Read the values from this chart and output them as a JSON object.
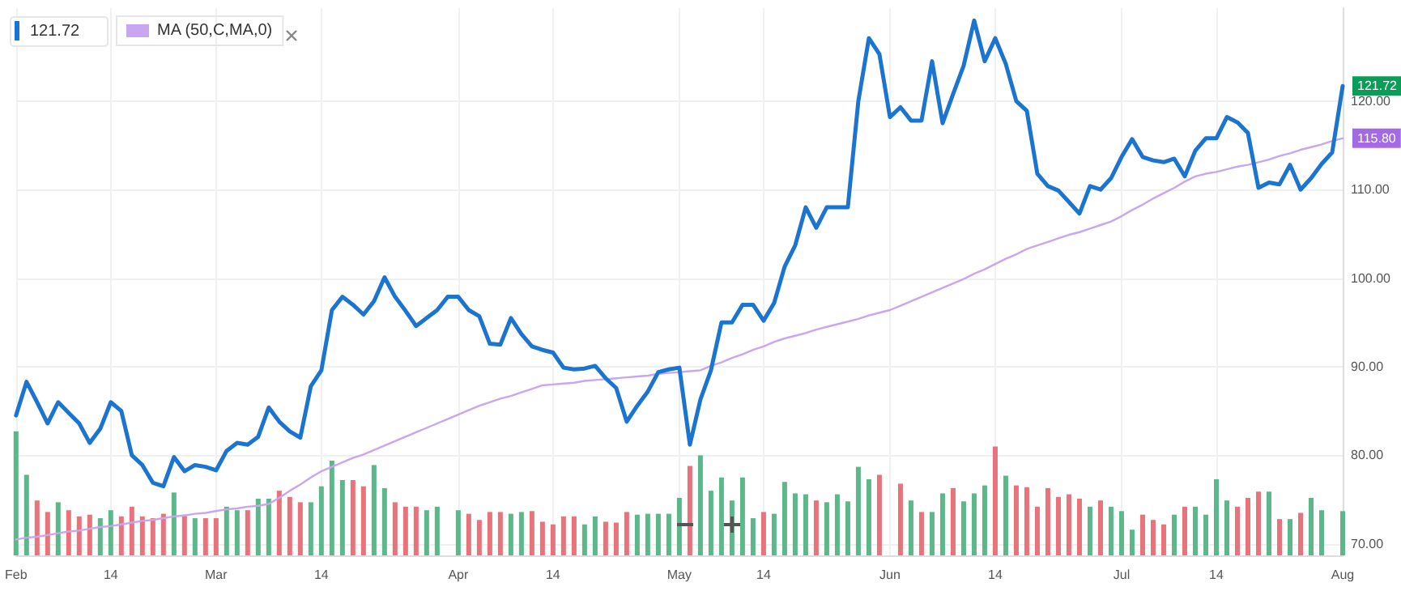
{
  "chart_data": {
    "type": "line",
    "annotations": [
      "121.72",
      {
        "text": "121.72",
        "x": "Aug",
        "y": 121.7
      },
      {
        "text": "115.80",
        "x": "Aug",
        "y": 115.8
      }
    ],
    "categories": [
      "Feb",
      null,
      null,
      null,
      null,
      null,
      null,
      null,
      null,
      "14",
      null,
      null,
      null,
      null,
      null,
      null,
      null,
      null,
      null,
      "Mar",
      null,
      null,
      null,
      null,
      null,
      null,
      null,
      null,
      null,
      "14",
      null,
      null,
      null,
      null,
      null,
      null,
      null,
      null,
      null,
      null,
      null,
      null,
      "Apr",
      null,
      null,
      null,
      null,
      null,
      null,
      null,
      null,
      "14",
      null,
      null,
      null,
      null,
      null,
      null,
      null,
      null,
      null,
      null,
      null,
      "May",
      null,
      null,
      null,
      null,
      null,
      null,
      null,
      "14",
      null,
      null,
      null,
      null,
      null,
      null,
      null,
      null,
      null,
      null,
      null,
      "Jun",
      null,
      null,
      null,
      null,
      null,
      null,
      null,
      null,
      null,
      "14",
      null,
      null,
      null,
      null,
      null,
      null,
      null,
      null,
      null,
      null,
      null,
      "Jul",
      null,
      null,
      null,
      null,
      null,
      null,
      null,
      null,
      "14",
      null,
      null,
      null,
      null,
      null,
      null,
      null,
      null,
      null,
      null,
      null,
      "Aug"
    ],
    "ylim": [
      68.7,
      130.5
    ],
    "yticks": [
      {
        "value": 70,
        "label": "70.00"
      },
      {
        "value": 80,
        "label": "80.00"
      },
      {
        "value": 90,
        "label": "90.00"
      },
      {
        "value": 100,
        "label": "100.00"
      },
      {
        "value": 110,
        "label": "110.00"
      },
      {
        "value": 120,
        "label": "120.00"
      }
    ],
    "grid": true,
    "legend": "top left",
    "series": [
      {
        "type": "bar",
        "values": [
          82.7,
          77.8,
          74.9,
          73.6,
          74.7,
          73.8,
          73.1,
          73.3,
          72.9,
          73.8,
          73.1,
          74.2,
          73.1,
          72.9,
          73.4,
          75.8,
          73.3,
          72.9,
          72.9,
          72.9,
          74.2,
          73.8,
          73.8,
          75.1,
          75.1,
          76.0,
          75.3,
          74.7,
          74.7,
          76.5,
          79.4,
          77.2,
          77.2,
          76.5,
          78.9,
          76.3,
          74.7,
          74.2,
          74.2,
          73.8,
          74.2,
          null,
          73.8,
          73.4,
          72.7,
          73.6,
          73.6,
          73.4,
          73.6,
          73.7,
          72.5,
          72.2,
          73.1,
          73.1,
          72.2,
          73.1,
          72.5,
          72.4,
          73.6,
          73.3,
          73.4,
          73.4,
          73.4,
          75.2,
          78.8,
          80.0,
          76.0,
          77.5,
          74.9,
          77.5,
          72.9,
          73.6,
          73.4,
          77.0,
          75.7,
          75.6,
          74.9,
          74.7,
          75.6,
          74.8,
          78.7,
          77.3,
          77.8,
          null,
          76.8,
          74.9,
          73.6,
          73.6,
          75.7,
          76.3,
          74.8,
          75.7,
          76.6,
          81.0,
          77.7,
          76.6,
          76.4,
          74.2,
          76.3,
          75.3,
          75.6,
          75.1,
          74.2,
          74.9,
          74.2,
          73.7,
          71.6,
          73.3,
          72.7,
          72.2,
          73.3,
          74.2,
          74.2,
          73.3,
          77.3,
          74.9,
          74.2,
          75.2,
          75.9,
          75.9,
          72.8,
          72.8,
          73.5,
          75.2,
          73.8,
          null,
          73.7
        ],
        "colors": [
          "#5cb88a",
          "#5cb88a",
          "#e8737a",
          "#e8737a",
          "#5cb88a",
          "#e8737a",
          "#e8737a",
          "#e8737a",
          "#5cb88a",
          "#5cb88a",
          "#e8737a",
          "#e8737a",
          "#e8737a",
          "#e8737a",
          "#e8737a",
          "#5cb88a",
          "#e8737a",
          "#5cb88a",
          "#e8737a",
          "#e8737a",
          "#5cb88a",
          "#5cb88a",
          "#e8737a",
          "#5cb88a",
          "#5cb88a",
          "#e8737a",
          "#e8737a",
          "#e8737a",
          "#5cb88a",
          "#5cb88a",
          "#5cb88a",
          "#5cb88a",
          "#e8737a",
          "#e8737a",
          "#5cb88a",
          "#5cb88a",
          "#e8737a",
          "#e8737a",
          "#e8737a",
          "#5cb88a",
          "#5cb88a",
          null,
          "#5cb88a",
          "#e8737a",
          "#e8737a",
          "#e8737a",
          "#e8737a",
          "#5cb88a",
          "#5cb88a",
          "#e8737a",
          "#e8737a",
          "#e8737a",
          "#e8737a",
          "#e8737a",
          "#5cb88a",
          "#5cb88a",
          "#e8737a",
          "#e8737a",
          "#e8737a",
          "#5cb88a",
          "#5cb88a",
          "#5cb88a",
          "#5cb88a",
          "#5cb88a",
          "#e8737a",
          "#5cb88a",
          "#5cb88a",
          "#5cb88a",
          "#5cb88a",
          "#5cb88a",
          "#5cb88a",
          "#e8737a",
          "#5cb88a",
          "#5cb88a",
          "#5cb88a",
          "#5cb88a",
          "#e8737a",
          "#5cb88a",
          "#5cb88a",
          "#5cb88a",
          "#5cb88a",
          "#5cb88a",
          "#e8737a",
          null,
          "#e8737a",
          "#5cb88a",
          "#e8737a",
          "#5cb88a",
          "#5cb88a",
          "#e8737a",
          "#5cb88a",
          "#5cb88a",
          "#5cb88a",
          "#e8737a",
          "#5cb88a",
          "#e8737a",
          "#e8737a",
          "#e8737a",
          "#e8737a",
          "#e8737a",
          "#e8737a",
          "#e8737a",
          "#5cb88a",
          "#e8737a",
          "#5cb88a",
          "#5cb88a",
          "#5cb88a",
          "#e8737a",
          "#e8737a",
          "#e8737a",
          "#5cb88a",
          "#e8737a",
          "#5cb88a",
          "#5cb88a",
          "#5cb88a",
          "#5cb88a",
          "#e8737a",
          "#e8737a",
          "#e8737a",
          "#5cb88a",
          "#e8737a",
          "#5cb88a",
          "#e8737a",
          "#5cb88a",
          "#5cb88a",
          null,
          "#5cb88a"
        ]
      },
      {
        "name": "MA (50,C,MA,0)",
        "type": "line",
        "color": "#c9a6f0",
        "values": [
          70.5,
          70.7,
          70.8,
          71.0,
          71.2,
          71.4,
          71.5,
          71.7,
          71.9,
          72.0,
          72.2,
          72.4,
          72.6,
          72.7,
          72.9,
          73.1,
          73.2,
          73.4,
          73.5,
          73.7,
          73.9,
          74.0,
          74.2,
          74.3,
          74.5,
          75.2,
          76.0,
          76.7,
          77.5,
          78.2,
          78.7,
          79.2,
          79.7,
          80.1,
          80.6,
          81.1,
          81.6,
          82.1,
          82.6,
          83.1,
          83.6,
          84.1,
          84.6,
          85.1,
          85.6,
          86.0,
          86.4,
          86.7,
          87.1,
          87.5,
          87.9,
          88.0,
          88.1,
          88.2,
          88.4,
          88.5,
          88.6,
          88.7,
          88.8,
          88.9,
          89.0,
          89.2,
          89.3,
          89.4,
          89.5,
          89.6,
          90.1,
          90.5,
          91.0,
          91.4,
          91.9,
          92.3,
          92.8,
          93.2,
          93.5,
          93.8,
          94.2,
          94.5,
          94.8,
          95.1,
          95.4,
          95.8,
          96.1,
          96.4,
          96.9,
          97.4,
          97.9,
          98.4,
          98.9,
          99.4,
          99.9,
          100.5,
          101.0,
          101.6,
          102.2,
          102.7,
          103.3,
          103.7,
          104.1,
          104.5,
          104.9,
          105.2,
          105.6,
          106.0,
          106.4,
          107.0,
          107.7,
          108.3,
          109.0,
          109.6,
          110.2,
          110.9,
          111.5,
          111.8,
          112.0,
          112.3,
          112.6,
          112.8,
          113.1,
          113.4,
          113.8,
          114.1,
          114.5,
          114.8,
          115.1,
          115.5,
          115.8
        ]
      },
      {
        "color": "#1b75d0",
        "values": [
          84.5,
          88.3,
          86.0,
          83.6,
          86.0,
          84.8,
          83.6,
          81.4,
          83.0,
          86.0,
          85.0,
          80.0,
          78.9,
          76.9,
          76.5,
          79.8,
          78.2,
          78.9,
          78.7,
          78.3,
          80.5,
          81.4,
          81.2,
          82.1,
          85.4,
          83.8,
          82.7,
          82.0,
          87.8,
          89.6,
          96.4,
          97.9,
          97.0,
          95.9,
          97.4,
          100.1,
          97.9,
          96.3,
          94.6,
          95.5,
          96.4,
          97.9,
          97.9,
          96.4,
          95.7,
          92.6,
          92.5,
          95.5,
          93.7,
          92.3,
          91.9,
          91.6,
          89.9,
          89.7,
          89.8,
          90.1,
          88.7,
          87.6,
          83.8,
          85.6,
          87.2,
          89.4,
          89.7,
          89.9,
          81.2,
          86.3,
          89.6,
          95.0,
          95.0,
          97.0,
          97.0,
          95.2,
          97.2,
          101.3,
          103.7,
          108.0,
          105.7,
          108.0,
          108.0,
          108.0,
          120.0,
          127.1,
          125.3,
          118.2,
          119.3,
          117.8,
          117.8,
          124.5,
          117.5,
          120.8,
          124.0,
          129.1,
          124.5,
          127.1,
          124.2,
          120.0,
          118.9,
          111.8,
          110.4,
          109.9,
          108.6,
          107.3,
          110.4,
          110.0,
          111.3,
          113.7,
          115.7,
          113.7,
          113.3,
          113.1,
          113.5,
          111.5,
          114.4,
          115.8,
          115.8,
          118.2,
          117.6,
          116.4,
          110.2,
          110.8,
          110.6,
          112.8,
          110.0,
          111.3,
          112.9,
          114.2,
          121.7
        ]
      }
    ]
  }
}
